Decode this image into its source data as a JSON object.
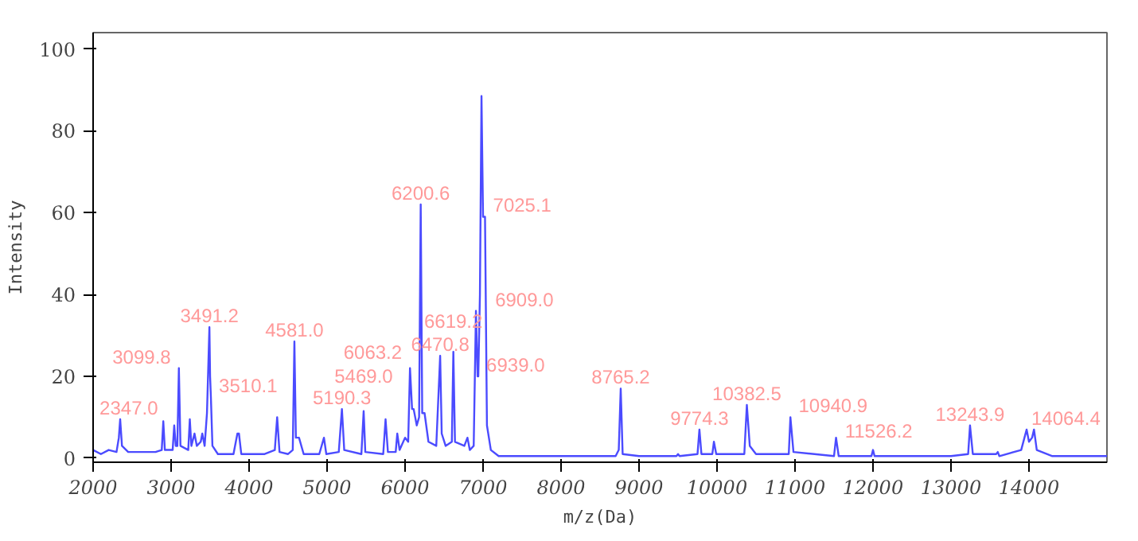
{
  "chart_data": {
    "type": "line",
    "xlabel": "m/z(Da)",
    "ylabel": "Intensity",
    "xlim": [
      2000,
      15000
    ],
    "ylim": [
      -1,
      104
    ],
    "xticks": [
      2000,
      3000,
      4000,
      5000,
      6000,
      7000,
      8000,
      9000,
      10000,
      11000,
      12000,
      13000,
      14000
    ],
    "yticks": [
      0,
      20,
      40,
      60,
      80,
      100
    ],
    "grid": false,
    "series": [
      {
        "color": "#4b4bff",
        "x": [
          2000,
          2100,
          2200,
          2300,
          2330,
          2347,
          2370,
          2450,
          2600,
          2800,
          2880,
          2900,
          2920,
          3020,
          3040,
          3060,
          3080,
          3099.8,
          3120,
          3220,
          3240,
          3260,
          3300,
          3330,
          3380,
          3400,
          3430,
          3460,
          3491.2,
          3500,
          3510.1,
          3530,
          3600,
          3800,
          3850,
          3870,
          3900,
          4200,
          4330,
          4360,
          4390,
          4500,
          4560,
          4581,
          4600,
          4640,
          4700,
          4900,
          4960,
          4990,
          5150,
          5190.3,
          5220,
          5440,
          5469,
          5490,
          5720,
          5750,
          5780,
          5880,
          5900,
          5930,
          6000,
          6040,
          6063.2,
          6090,
          6110,
          6150,
          6180,
          6200.6,
          6220,
          6250,
          6300,
          6400,
          6450,
          6470,
          6520,
          6600,
          6619.2,
          6640,
          6760,
          6800,
          6830,
          6880,
          6909,
          6930,
          6939,
          6960,
          6980,
          7000,
          7025.1,
          7050,
          7100,
          7200,
          7500,
          8000,
          8700,
          8740,
          8765.2,
          8790,
          9000,
          9480,
          9500,
          9520,
          9750,
          9774.3,
          9800,
          9940,
          9960,
          9990,
          10350,
          10382.5,
          10420,
          10500,
          10920,
          10940.9,
          10980,
          11500,
          11526.2,
          11560,
          11980,
          12000,
          12020,
          12500,
          13000,
          13220,
          13243.9,
          13280,
          13580,
          13600,
          13620,
          13900,
          13970,
          14000,
          14040,
          14064.4,
          14100,
          14300,
          15000
        ],
        "values": [
          2,
          1,
          2,
          1.5,
          5,
          9.5,
          3,
          1.5,
          1.5,
          1.5,
          2,
          9,
          2,
          2,
          8,
          3,
          3,
          22,
          3,
          2,
          9.5,
          3,
          6,
          3,
          4,
          6,
          3,
          11,
          32,
          20,
          15,
          3,
          1,
          1,
          6,
          6,
          1,
          1,
          2,
          10,
          1.5,
          1,
          2,
          28.5,
          5,
          5,
          1,
          1,
          5,
          1,
          1.5,
          12,
          2,
          1,
          11.5,
          1.5,
          1,
          9.5,
          1.5,
          1.5,
          6,
          2,
          5,
          4,
          22,
          12,
          12,
          8,
          10,
          62,
          11,
          11,
          4,
          3,
          25,
          6,
          3,
          4,
          26,
          4,
          3,
          5,
          2,
          3,
          36,
          20,
          20,
          40,
          88.5,
          59,
          59,
          8,
          2,
          0.5,
          0.5,
          0.5,
          0.5,
          2,
          17,
          1,
          0.5,
          0.5,
          1,
          0.5,
          1,
          7,
          1,
          1,
          4,
          1,
          1,
          13,
          3,
          1,
          1,
          10,
          1.5,
          0.5,
          5,
          0.5,
          0.5,
          2,
          0.5,
          0.5,
          0.5,
          1,
          8,
          1,
          1,
          1.5,
          0.5,
          2,
          7,
          4,
          5,
          7,
          2,
          0.5,
          0.5
        ]
      }
    ],
    "annotations": [
      {
        "text": "2347.0",
        "x": 2347,
        "y": 9.5
      },
      {
        "text": "3099.8",
        "x": 3099.8,
        "y": 22
      },
      {
        "text": "3491.2",
        "x": 3491.2,
        "y": 32
      },
      {
        "text": "3510.1",
        "x": 3510.1,
        "y": 15
      },
      {
        "text": "4581.0",
        "x": 4581,
        "y": 28.5
      },
      {
        "text": "5190.3",
        "x": 5190.3,
        "y": 12
      },
      {
        "text": "5469.0",
        "x": 5469,
        "y": 11.5
      },
      {
        "text": "6063.2",
        "x": 6063.2,
        "y": 22
      },
      {
        "text": "6200.6",
        "x": 6200.6,
        "y": 62
      },
      {
        "text": "6470.8",
        "x": 6450,
        "y": 25
      },
      {
        "text": "6619.2",
        "x": 6619.2,
        "y": 26
      },
      {
        "text": "6909.0",
        "x": 6909,
        "y": 36
      },
      {
        "text": "6939.0",
        "x": 6939,
        "y": 20
      },
      {
        "text": "7025.1",
        "x": 7025.1,
        "y": 59
      },
      {
        "text": "8765.2",
        "x": 8765.2,
        "y": 17
      },
      {
        "text": "9774.3",
        "x": 9774.3,
        "y": 7
      },
      {
        "text": "10382.5",
        "x": 10382.5,
        "y": 13
      },
      {
        "text": "10940.9",
        "x": 10940.9,
        "y": 10
      },
      {
        "text": "11526.2",
        "x": 11526.2,
        "y": 5
      },
      {
        "text": "13243.9",
        "x": 13243.9,
        "y": 8
      },
      {
        "text": "14064.4",
        "x": 14064.4,
        "y": 7
      }
    ]
  }
}
